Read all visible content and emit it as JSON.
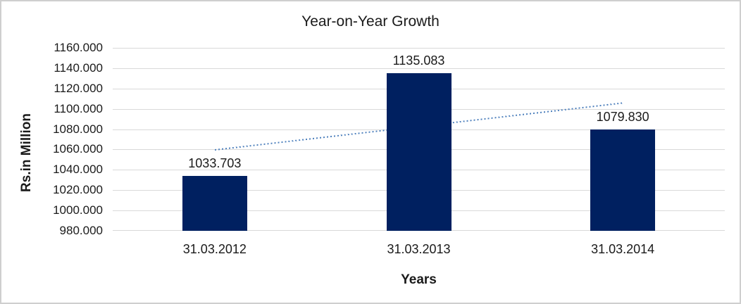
{
  "chart_data": {
    "type": "bar",
    "title": "Year-on-Year Growth",
    "xlabel": "Years",
    "ylabel": "Rs.in Million",
    "categories": [
      "31.03.2012",
      "31.03.2013",
      "31.03.2014"
    ],
    "values": [
      1033.703,
      1135.083,
      1079.83
    ],
    "data_labels": [
      "1033.703",
      "1135.083",
      "1079.830"
    ],
    "ylim": [
      980,
      1160
    ],
    "ytick_step": 20,
    "ytick_labels": [
      "1160.000",
      "1140.000",
      "1120.000",
      "1100.000",
      "1080.000",
      "1060.000",
      "1040.000",
      "1020.000",
      "1000.000",
      "980.000"
    ],
    "grid": true,
    "legend": "none",
    "trendline": {
      "type": "linear",
      "style": "dotted",
      "start_value": 1059.8,
      "end_value": 1105.9
    },
    "colors": {
      "bar": "#002060",
      "trend": "#4F81BD",
      "gridline": "#D9D9D9",
      "text": "#1A1A1A",
      "border": "#CFCFCF"
    }
  }
}
